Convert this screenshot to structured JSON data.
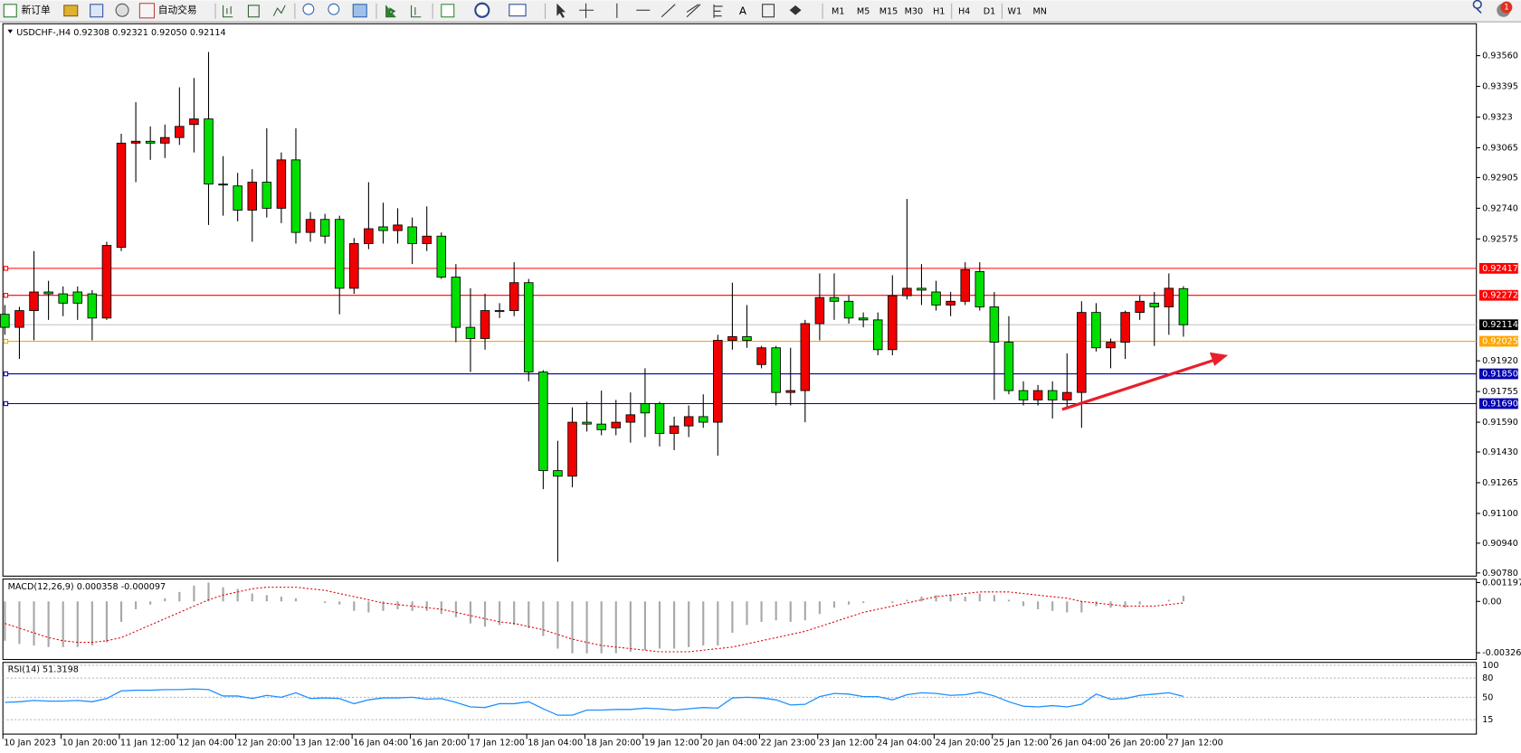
{
  "toolbar": {
    "new_order": "新订单",
    "auto_trading": "自动交易",
    "timeframes": [
      "M1",
      "M5",
      "M15",
      "M30",
      "H1",
      "H4",
      "D1",
      "W1",
      "MN"
    ],
    "badge": "1"
  },
  "chart_data": [
    {
      "type": "candlestick",
      "title": "USDCHF-,H4 0.92308 0.92321 0.92050 0.92114",
      "categories": [
        "10 Jan 2023",
        null,
        null,
        null,
        "10 Jan 20:00",
        null,
        null,
        null,
        "11 Jan 12:00",
        null,
        null,
        null,
        "12 Jan 04:00",
        null,
        null,
        null,
        "12 Jan 20:00",
        null,
        null,
        null,
        "13 Jan 12:00",
        null,
        null,
        null,
        "16 Jan 04:00",
        null,
        null,
        null,
        "16 Jan 20:00",
        null,
        null,
        null,
        "17 Jan 12:00",
        null,
        null,
        null,
        "18 Jan 04:00",
        null,
        null,
        null,
        "18 Jan 20:00",
        null,
        null,
        null,
        "19 Jan 12:00",
        null,
        null,
        null,
        "20 Jan 04:00",
        null,
        null,
        null,
        "22 Jan 23:00",
        null,
        null,
        null,
        "23 Jan 12:00",
        null,
        null,
        null,
        "24 Jan 04:00",
        null,
        null,
        null,
        "24 Jan 20:00",
        null,
        null,
        null,
        "25 Jan 12:00",
        null,
        null,
        null,
        "26 Jan 04:00",
        null,
        null,
        null,
        "26 Jan 20:00",
        null,
        null,
        null,
        "27 Jan 12:00",
        null
      ],
      "open": [
        0.9217,
        0.921,
        0.9219,
        0.9229,
        0.9228,
        0.9229,
        0.9228,
        0.9215,
        0.9253,
        0.9309,
        0.931,
        0.9309,
        0.9312,
        0.9319,
        0.9322,
        0.9287,
        0.9286,
        0.9273,
        0.9288,
        0.9274,
        0.93,
        0.9261,
        0.9268,
        0.9268,
        0.9231,
        0.9255,
        0.9264,
        0.9262,
        0.9264,
        0.9255,
        0.9259,
        0.9237,
        0.921,
        0.9204,
        0.9219,
        0.9219,
        0.9234,
        0.9186,
        0.9133,
        0.913,
        0.9159,
        0.9158,
        0.9156,
        0.9159,
        0.9169,
        0.9169,
        0.9153,
        0.9157,
        0.9162,
        0.9159,
        0.9203,
        0.9205,
        0.919,
        0.9199,
        0.9175,
        0.9176,
        0.9212,
        0.9226,
        0.9224,
        0.9215,
        0.9214,
        0.9198,
        0.9227,
        0.9231,
        0.9229,
        0.9222,
        0.9224,
        0.924,
        0.9221,
        0.9202,
        0.9176,
        0.9171,
        0.9176,
        0.9171,
        0.9175,
        0.9218,
        0.9199,
        0.9202,
        0.9218,
        0.9223,
        0.9221,
        0.92308
      ],
      "high": [
        0.9222,
        0.9221,
        0.9251,
        0.9235,
        0.9232,
        0.9232,
        0.923,
        0.9256,
        0.9314,
        0.9331,
        0.9318,
        0.9319,
        0.9339,
        0.9344,
        0.9358,
        0.9302,
        0.9293,
        0.9295,
        0.9317,
        0.9304,
        0.9317,
        0.9272,
        0.9271,
        0.927,
        0.9258,
        0.9288,
        0.9277,
        0.9274,
        0.9269,
        0.9275,
        0.9261,
        0.9244,
        0.9231,
        0.9228,
        0.9223,
        0.9245,
        0.9236,
        0.9187,
        0.9149,
        0.9167,
        0.917,
        0.9176,
        0.9171,
        0.9175,
        0.9188,
        0.917,
        0.9162,
        0.9168,
        0.9174,
        0.9206,
        0.9234,
        0.9222,
        0.92,
        0.92,
        0.9199,
        0.9214,
        0.9239,
        0.9239,
        0.9227,
        0.9218,
        0.9218,
        0.9238,
        0.9279,
        0.9244,
        0.9235,
        0.9229,
        0.9245,
        0.9245,
        0.9229,
        0.9216,
        0.9181,
        0.9179,
        0.9181,
        0.9196,
        0.9224,
        0.9223,
        0.9204,
        0.9219,
        0.9227,
        0.9229,
        0.9239,
        0.92321
      ],
      "low": [
        0.9206,
        0.9193,
        0.9203,
        0.9214,
        0.9216,
        0.9214,
        0.9203,
        0.9214,
        0.9251,
        0.9288,
        0.93,
        0.9301,
        0.9308,
        0.9304,
        0.9265,
        0.927,
        0.9267,
        0.9256,
        0.9269,
        0.9266,
        0.9255,
        0.9256,
        0.9255,
        0.9217,
        0.9228,
        0.9252,
        0.9255,
        0.9255,
        0.9244,
        0.9251,
        0.9236,
        0.9202,
        0.9186,
        0.9198,
        0.9215,
        0.9216,
        0.9181,
        0.9123,
        0.9084,
        0.9124,
        0.9154,
        0.9152,
        0.9152,
        0.9148,
        0.9151,
        0.9146,
        0.9144,
        0.9151,
        0.9156,
        0.9141,
        0.9198,
        0.9199,
        0.9188,
        0.9168,
        0.9168,
        0.9159,
        0.9203,
        0.9214,
        0.9212,
        0.921,
        0.9195,
        0.9195,
        0.9225,
        0.9222,
        0.9219,
        0.9216,
        0.9222,
        0.9219,
        0.9171,
        0.9174,
        0.9168,
        0.9168,
        0.9161,
        0.9167,
        0.9156,
        0.9197,
        0.9188,
        0.9193,
        0.9214,
        0.92,
        0.9206,
        0.9205
      ],
      "close": [
        0.921,
        0.9219,
        0.9229,
        0.9228,
        0.9223,
        0.9223,
        0.9215,
        0.9254,
        0.9309,
        0.931,
        0.9309,
        0.9312,
        0.9318,
        0.9322,
        0.9287,
        0.9287,
        0.9273,
        0.9288,
        0.9274,
        0.93,
        0.9261,
        0.9268,
        0.9259,
        0.9231,
        0.9255,
        0.9263,
        0.9262,
        0.9265,
        0.9255,
        0.9259,
        0.9237,
        0.921,
        0.9204,
        0.9219,
        0.9219,
        0.9234,
        0.9186,
        0.9133,
        0.913,
        0.9159,
        0.9158,
        0.9155,
        0.9159,
        0.9163,
        0.9164,
        0.9153,
        0.9157,
        0.9162,
        0.9159,
        0.9203,
        0.9205,
        0.9203,
        0.9199,
        0.9175,
        0.9176,
        0.9212,
        0.9226,
        0.9224,
        0.9215,
        0.9214,
        0.9198,
        0.9227,
        0.9231,
        0.923,
        0.9222,
        0.9224,
        0.9241,
        0.9221,
        0.9202,
        0.9176,
        0.9171,
        0.9176,
        0.9171,
        0.9175,
        0.9218,
        0.9199,
        0.9202,
        0.9218,
        0.9224,
        0.9221,
        0.9231,
        0.92114
      ],
      "up_color": "#f00000",
      "down_color": "#00e000",
      "ylim": [
        0.90768,
        0.93716
      ],
      "yticks": [
        {
          "value": 0.9356,
          "label": "0.93560"
        },
        0.93395,
        0.9323,
        {
          "value": 0.93065,
          "label": "0.93065"
        },
        0.92905,
        {
          "value": 0.9274,
          "label": "0.92740"
        },
        0.92575,
        {
          "value": 0.9192,
          "label": "0.91920"
        },
        0.91755,
        {
          "value": 0.9159,
          "label": "0.91590"
        },
        {
          "value": 0.9143,
          "label": "0.91430"
        },
        0.91265,
        {
          "value": 0.911,
          "label": "0.91100"
        },
        {
          "value": 0.9094,
          "label": "0.90940"
        },
        {
          "value": 0.9078,
          "label": "0.90780"
        }
      ],
      "levels": [
        {
          "value": 0.92417,
          "label": "0.92417",
          "color": "#ff0000",
          "box_color": "#ff0000"
        },
        {
          "value": 0.92272,
          "label": "0.92272",
          "color": "#ff0000",
          "box_color": "#ff0000"
        },
        {
          "value": 0.92114,
          "label": "0.92114",
          "color": "#c0c0c0",
          "box_color": "#000000"
        },
        {
          "value": 0.92025,
          "label": "0.92025",
          "color": "#ffa500",
          "box_color": "#ffa500"
        },
        {
          "value": 0.9185,
          "label": "0.91850",
          "color": "#0000b0",
          "box_color": "#0000b0"
        },
        {
          "value": 0.9169,
          "label": "0.91690",
          "color": "#0000b0",
          "box_color": "#0000b0"
        }
      ]
    },
    {
      "type": "macd",
      "title": "MACD(12,26,9) 0.000358 -0.000097",
      "values": [
        -0.0025,
        -0.0027,
        -0.0028,
        -0.0029,
        -0.0029,
        -0.0029,
        -0.0028,
        -0.0026,
        -0.0013,
        -0.0005,
        -0.0002,
        0.0002,
        0.0006,
        0.001,
        0.0012,
        0.0009,
        0.0008,
        0.0005,
        0.0004,
        0.0003,
        0.0002,
        0.0,
        -0.0001,
        -0.0002,
        -0.0006,
        -0.0007,
        -0.0006,
        -0.0005,
        -0.0006,
        -0.0006,
        -0.0008,
        -0.001,
        -0.0014,
        -0.0016,
        -0.0015,
        -0.0015,
        -0.0017,
        -0.0022,
        -0.003,
        -0.0033,
        -0.0033,
        -0.0033,
        -0.0033,
        -0.0032,
        -0.0031,
        -0.003,
        -0.003,
        -0.0029,
        -0.0028,
        -0.0028,
        -0.002,
        -0.0015,
        -0.0013,
        -0.0012,
        -0.0013,
        -0.0012,
        -0.0008,
        -0.0004,
        -0.0002,
        -0.0001,
        0.0,
        -0.0001,
        0.0001,
        0.0003,
        0.0004,
        0.0004,
        0.0003,
        0.0005,
        0.0004,
        0.0001,
        -0.0003,
        -0.0005,
        -0.0006,
        -0.0007,
        -0.0007,
        -0.0003,
        -0.0004,
        -0.0004,
        -0.0002,
        0.0,
        0.0001,
        0.000358
      ],
      "signal": [
        -0.0014,
        -0.0017,
        -0.002,
        -0.0023,
        -0.0025,
        -0.0026,
        -0.0026,
        -0.0025,
        -0.0023,
        -0.0019,
        -0.0015,
        -0.0011,
        -0.0007,
        -0.0003,
        0.0001,
        0.0004,
        0.0006,
        0.0008,
        0.0009,
        0.0009,
        0.0009,
        0.0008,
        0.0007,
        0.0005,
        0.0003,
        0.0001,
        -0.0001,
        -0.0002,
        -0.0003,
        -0.0004,
        -0.0005,
        -0.0007,
        -0.0009,
        -0.0011,
        -0.0013,
        -0.0014,
        -0.0016,
        -0.0018,
        -0.0021,
        -0.0024,
        -0.0026,
        -0.0028,
        -0.0029,
        -0.003,
        -0.0031,
        -0.0032,
        -0.0032,
        -0.0032,
        -0.0031,
        -0.003,
        -0.0029,
        -0.0027,
        -0.0025,
        -0.0023,
        -0.0021,
        -0.0019,
        -0.0016,
        -0.0013,
        -0.001,
        -0.0007,
        -0.0005,
        -0.0003,
        -0.0001,
        0.0001,
        0.0003,
        0.0004,
        0.0005,
        0.0006,
        0.0006,
        0.0006,
        0.0005,
        0.0004,
        0.0003,
        0.0002,
        0.0,
        -0.0001,
        -0.0002,
        -0.0003,
        -0.0003,
        -0.0003,
        -0.0002,
        -9.7e-05
      ],
      "color": "#a8a8a8",
      "signal_color": "#e00000",
      "ylim": [
        -0.00369,
        0.00142
      ],
      "yticks": [
        0.001197,
        {
          "value": 0,
          "label": "0.00"
        },
        -0.003263
      ]
    },
    {
      "type": "rsi",
      "title": "RSI(14) 51.3198",
      "values": [
        42,
        43,
        45,
        44,
        44,
        45,
        43,
        48,
        60,
        61,
        61,
        62,
        62,
        63,
        62,
        52,
        52,
        48,
        53,
        50,
        57,
        48,
        49,
        48,
        40,
        46,
        49,
        49,
        50,
        47,
        48,
        42,
        35,
        34,
        40,
        40,
        43,
        32,
        22,
        22,
        30,
        30,
        31,
        31,
        33,
        32,
        30,
        32,
        34,
        33,
        49,
        50,
        49,
        46,
        38,
        39,
        51,
        56,
        55,
        51,
        51,
        46,
        54,
        57,
        56,
        53,
        54,
        58,
        52,
        43,
        36,
        35,
        37,
        35,
        39,
        55,
        47,
        48,
        53,
        55,
        57,
        51.3198
      ],
      "color": "#1e90ff",
      "ylim": [
        0,
        100
      ],
      "yticks": [
        100,
        80,
        50,
        15
      ]
    }
  ]
}
